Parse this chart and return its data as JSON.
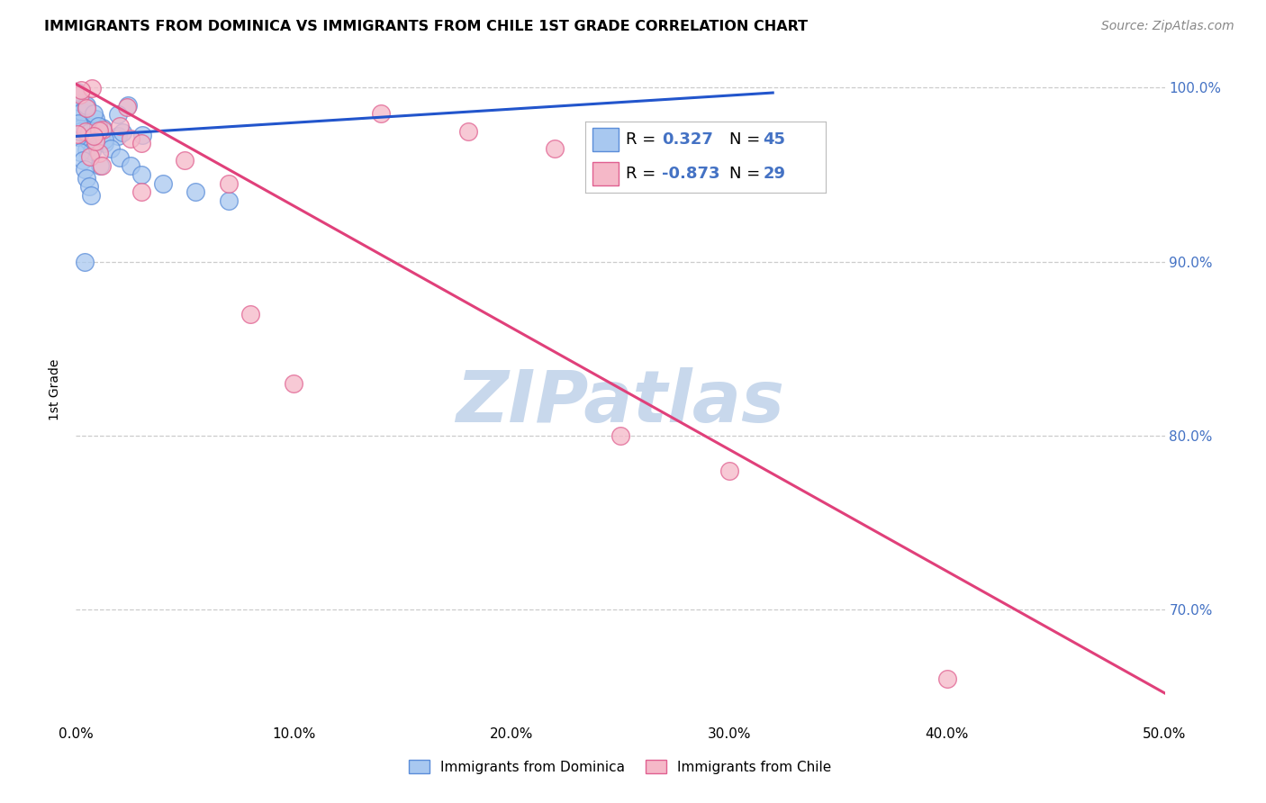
{
  "title": "IMMIGRANTS FROM DOMINICA VS IMMIGRANTS FROM CHILE 1ST GRADE CORRELATION CHART",
  "source": "Source: ZipAtlas.com",
  "ylabel": "1st Grade",
  "xmin": 0.0,
  "xmax": 0.5,
  "ymin": 0.635,
  "ymax": 1.018,
  "ytick_labels_right": [
    "100.0%",
    "90.0%",
    "80.0%",
    "70.0%"
  ],
  "ytick_values": [
    1.0,
    0.9,
    0.8,
    0.7
  ],
  "xtick_labels": [
    "0.0%",
    "10.0%",
    "20.0%",
    "30.0%",
    "40.0%",
    "50.0%"
  ],
  "xtick_values": [
    0.0,
    0.1,
    0.2,
    0.3,
    0.4,
    0.5
  ],
  "dominica_fill": "#A8C8F0",
  "dominica_edge": "#5B8DD9",
  "chile_fill": "#F5B8C8",
  "chile_edge": "#E06090",
  "trend_blue": "#2255CC",
  "trend_pink": "#E0407A",
  "right_axis_color": "#4472C4",
  "watermark": "ZIPatlas",
  "watermark_color": "#C8D8EC",
  "R_dominica": "0.327",
  "N_dominica": "45",
  "R_chile": "-0.873",
  "N_chile": "29",
  "legend_label_blue": "Immigrants from Dominica",
  "legend_label_pink": "Immigrants from Chile",
  "blue_trend_x": [
    0.0,
    0.32
  ],
  "blue_trend_y": [
    0.972,
    0.997
  ],
  "pink_trend_x": [
    0.0,
    0.5
  ],
  "pink_trend_y": [
    1.002,
    0.652
  ]
}
